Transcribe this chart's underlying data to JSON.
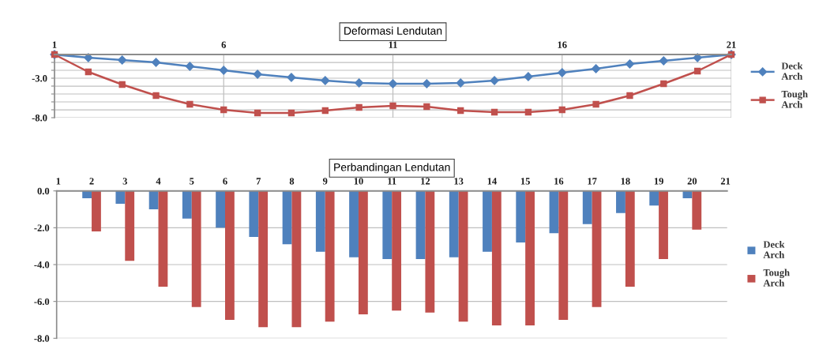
{
  "chart_data": [
    {
      "type": "line",
      "title": "Deformasi Lendutan",
      "x": [
        1,
        2,
        3,
        4,
        5,
        6,
        7,
        8,
        9,
        10,
        11,
        12,
        13,
        14,
        15,
        16,
        17,
        18,
        19,
        20,
        21
      ],
      "xlim": [
        1,
        21
      ],
      "xticks": [
        1,
        6,
        11,
        16,
        21
      ],
      "ylim": [
        -8,
        0
      ],
      "yticks": [
        {
          "value": -8,
          "label": "-8.0"
        },
        {
          "value": -7,
          "label": null
        },
        {
          "value": -6,
          "label": null
        },
        {
          "value": -5,
          "label": null
        },
        {
          "value": -4,
          "label": null
        },
        {
          "value": -3,
          "label": "-3.0"
        },
        {
          "value": -2,
          "label": null
        },
        {
          "value": -1,
          "label": null
        },
        {
          "value": 0,
          "label": null
        }
      ],
      "grid": true,
      "legend": "right",
      "series": [
        {
          "name": "Deck Arch",
          "color": "#4f81bd",
          "marker": "diamond",
          "values": [
            0,
            -0.4,
            -0.7,
            -1.0,
            -1.5,
            -2.0,
            -2.5,
            -2.9,
            -3.3,
            -3.6,
            -3.7,
            -3.7,
            -3.6,
            -3.3,
            -2.8,
            -2.3,
            -1.8,
            -1.2,
            -0.8,
            -0.4,
            0
          ]
        },
        {
          "name": "Tough Arch",
          "color": "#c0504d",
          "marker": "square",
          "values": [
            0,
            -2.2,
            -3.8,
            -5.2,
            -6.3,
            -7.0,
            -7.4,
            -7.4,
            -7.1,
            -6.7,
            -6.5,
            -6.6,
            -7.1,
            -7.3,
            -7.3,
            -7.0,
            -6.3,
            -5.2,
            -3.7,
            -2.1,
            0
          ]
        }
      ]
    },
    {
      "type": "bar",
      "title": "Perbandingan Lendutan",
      "categories": [
        "1",
        "2",
        "3",
        "4",
        "5",
        "6",
        "7",
        "8",
        "9",
        "10",
        "11",
        "12",
        "13",
        "14",
        "15",
        "16",
        "17",
        "18",
        "19",
        "20",
        "21"
      ],
      "ylim": [
        -8,
        0
      ],
      "yticks": [
        {
          "value": 0,
          "label": "0.0"
        },
        {
          "value": -2,
          "label": "-2.0"
        },
        {
          "value": -4,
          "label": "-4.0"
        },
        {
          "value": -6,
          "label": "-6.0"
        },
        {
          "value": -8,
          "label": "-8.0"
        }
      ],
      "grid": "y",
      "legend": "right",
      "series": [
        {
          "name": "Deck Arch",
          "color": "#4f81bd",
          "values": [
            0,
            -0.4,
            -0.7,
            -1.0,
            -1.5,
            -2.0,
            -2.5,
            -2.9,
            -3.3,
            -3.6,
            -3.7,
            -3.7,
            -3.6,
            -3.3,
            -2.8,
            -2.3,
            -1.8,
            -1.2,
            -0.8,
            -0.4,
            0
          ]
        },
        {
          "name": "Tough Arch",
          "color": "#c0504d",
          "values": [
            0,
            -2.2,
            -3.8,
            -5.2,
            -6.3,
            -7.0,
            -7.4,
            -7.4,
            -7.1,
            -6.7,
            -6.5,
            -6.6,
            -7.1,
            -7.3,
            -7.3,
            -7.0,
            -6.3,
            -5.2,
            -3.7,
            -2.1,
            0
          ]
        }
      ]
    }
  ]
}
